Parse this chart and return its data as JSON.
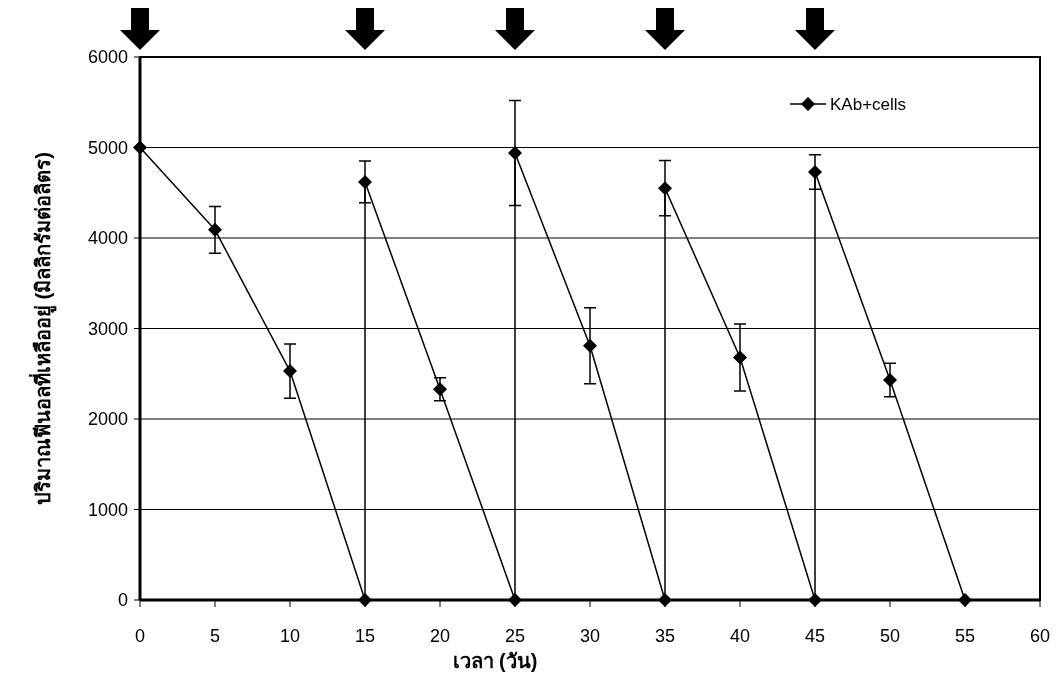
{
  "chart_data": {
    "type": "line",
    "xlabel": "เวลา (วัน)",
    "ylabel": "ปริมาณฟีนอลที่เหลืออยู่ (มิลลิกรัมต่อลิตร)",
    "series": [
      {
        "name": "KAb+cells",
        "color": "#000000",
        "x": [
          0,
          5,
          10,
          15,
          15,
          20,
          25,
          25,
          30,
          35,
          35,
          40,
          45,
          45,
          50,
          55
        ],
        "values": [
          5000,
          4090,
          2530,
          0,
          4620,
          2330,
          0,
          4940,
          2810,
          0,
          4550,
          2680,
          0,
          4730,
          2430,
          0
        ],
        "errors": [
          null,
          258,
          300,
          null,
          230,
          127,
          null,
          580,
          420,
          null,
          305,
          370,
          null,
          190,
          185,
          null
        ]
      }
    ],
    "xlim": [
      0,
      60
    ],
    "xticks": [
      0,
      5,
      10,
      15,
      20,
      25,
      30,
      35,
      40,
      45,
      50,
      55,
      60
    ],
    "ylim": [
      0,
      6000
    ],
    "yticks": [
      0,
      1000,
      2000,
      3000,
      4000,
      5000,
      6000
    ],
    "grid": "y",
    "legend": "top right",
    "marker": "diamond",
    "line_style": "solid"
  }
}
